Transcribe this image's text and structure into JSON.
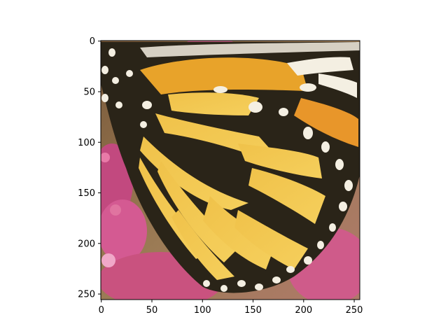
{
  "figure": {
    "subject": "monarch butterfly wing close-up on pink flowers",
    "colors": {
      "background": "#ffffff",
      "axes_frame": "#000000",
      "wing_orange": "#e8a32a",
      "wing_yellow": "#f2c94c",
      "vein_black": "#2a2418",
      "spot_white": "#f4efe2",
      "flower_pink": "#cc4f86",
      "bg_brown": "#8a6a45"
    },
    "x_axis": {
      "ticks": [
        "0",
        "50",
        "100",
        "150",
        "200",
        "250"
      ]
    },
    "y_axis": {
      "ticks": [
        "0",
        "50",
        "100",
        "150",
        "200",
        "250"
      ]
    }
  }
}
